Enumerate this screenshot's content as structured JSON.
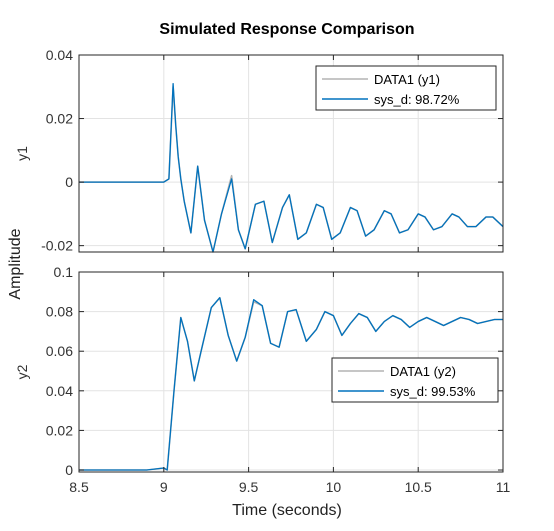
{
  "chart_data": {
    "type": "line",
    "title": "Simulated Response Comparison",
    "xlabel": "Time (seconds)",
    "ylabel": "Amplitude",
    "x_ticks": [
      "8.5",
      "9",
      "9.5",
      "10",
      "10.5",
      "11"
    ],
    "grid": true,
    "colors": {
      "data": "#b3b3b3",
      "model": "#0072bd"
    },
    "subplots": [
      {
        "ylabel": "y1",
        "xlim": [
          8.5,
          11
        ],
        "ylim": [
          -0.022,
          0.04
        ],
        "y_ticks": [
          "-0.02",
          "0",
          "0.02",
          "0.04"
        ],
        "legend_position": "top-right",
        "series": [
          {
            "name": "DATA1 (y1)",
            "role": "data",
            "x": [
              8.5,
              9.0,
              9.03,
              9.055,
              9.07,
              9.085,
              9.1,
              9.12,
              9.16,
              9.2,
              9.24,
              9.29,
              9.34,
              9.4,
              9.44,
              9.48,
              9.54,
              9.59,
              9.64,
              9.7,
              9.74,
              9.79,
              9.84,
              9.9,
              9.94,
              9.99,
              10.04,
              10.1,
              10.14,
              10.19,
              10.24,
              10.3,
              10.34,
              10.39,
              10.44,
              10.5,
              10.54,
              10.59,
              10.64,
              10.7,
              10.74,
              10.79,
              10.84,
              10.9,
              10.94,
              11.0
            ],
            "y": [
              0.0,
              0.0,
              0.001,
              0.03,
              0.018,
              0.008,
              0.001,
              -0.006,
              -0.016,
              0.005,
              -0.012,
              -0.022,
              -0.01,
              0.002,
              -0.015,
              -0.021,
              -0.007,
              -0.006,
              -0.019,
              -0.008,
              -0.004,
              -0.018,
              -0.016,
              -0.007,
              -0.008,
              -0.018,
              -0.016,
              -0.008,
              -0.009,
              -0.017,
              -0.015,
              -0.009,
              -0.01,
              -0.016,
              -0.015,
              -0.01,
              -0.011,
              -0.015,
              -0.014,
              -0.01,
              -0.011,
              -0.014,
              -0.014,
              -0.011,
              -0.011,
              -0.014
            ]
          },
          {
            "name": "sys_d: 98.72%",
            "role": "model",
            "x": [
              8.5,
              9.0,
              9.03,
              9.055,
              9.07,
              9.085,
              9.1,
              9.12,
              9.16,
              9.2,
              9.24,
              9.29,
              9.34,
              9.4,
              9.44,
              9.48,
              9.54,
              9.59,
              9.64,
              9.7,
              9.74,
              9.79,
              9.84,
              9.9,
              9.94,
              9.99,
              10.04,
              10.1,
              10.14,
              10.19,
              10.24,
              10.3,
              10.34,
              10.39,
              10.44,
              10.5,
              10.54,
              10.59,
              10.64,
              10.7,
              10.74,
              10.79,
              10.84,
              10.9,
              10.94,
              11.0
            ],
            "y": [
              0.0,
              0.0,
              0.001,
              0.031,
              0.018,
              0.008,
              0.001,
              -0.006,
              -0.016,
              0.005,
              -0.012,
              -0.022,
              -0.01,
              0.001,
              -0.015,
              -0.021,
              -0.007,
              -0.006,
              -0.019,
              -0.008,
              -0.004,
              -0.018,
              -0.016,
              -0.007,
              -0.008,
              -0.018,
              -0.016,
              -0.008,
              -0.009,
              -0.017,
              -0.015,
              -0.009,
              -0.01,
              -0.016,
              -0.015,
              -0.01,
              -0.011,
              -0.015,
              -0.014,
              -0.01,
              -0.011,
              -0.014,
              -0.014,
              -0.011,
              -0.011,
              -0.014
            ]
          }
        ]
      },
      {
        "ylabel": "y2",
        "xlim": [
          8.5,
          11
        ],
        "ylim": [
          -0.001,
          0.1
        ],
        "y_ticks": [
          "0",
          "0.02",
          "0.04",
          "0.06",
          "0.08",
          "0.1"
        ],
        "legend_position": "middle-right",
        "series": [
          {
            "name": "DATA1 (y2)",
            "role": "data",
            "x": [
              8.5,
              8.9,
              9.0,
              9.02,
              9.06,
              9.1,
              9.14,
              9.18,
              9.22,
              9.28,
              9.33,
              9.38,
              9.43,
              9.48,
              9.53,
              9.58,
              9.63,
              9.68,
              9.73,
              9.78,
              9.84,
              9.9,
              9.95,
              10.0,
              10.05,
              10.1,
              10.15,
              10.2,
              10.25,
              10.3,
              10.35,
              10.4,
              10.45,
              10.5,
              10.55,
              10.6,
              10.65,
              10.7,
              10.75,
              10.8,
              10.85,
              10.9,
              10.95,
              11.0
            ],
            "y": [
              0.0,
              0.0,
              0.001,
              0.0,
              0.04,
              0.077,
              0.065,
              0.045,
              0.06,
              0.082,
              0.087,
              0.068,
              0.055,
              0.067,
              0.085,
              0.083,
              0.064,
              0.062,
              0.08,
              0.081,
              0.065,
              0.071,
              0.08,
              0.078,
              0.068,
              0.074,
              0.079,
              0.077,
              0.07,
              0.075,
              0.078,
              0.076,
              0.072,
              0.075,
              0.077,
              0.075,
              0.073,
              0.075,
              0.077,
              0.076,
              0.074,
              0.075,
              0.076,
              0.076
            ]
          },
          {
            "name": "sys_d: 99.53%",
            "role": "model",
            "x": [
              8.5,
              8.9,
              9.0,
              9.02,
              9.06,
              9.1,
              9.14,
              9.18,
              9.22,
              9.28,
              9.33,
              9.38,
              9.43,
              9.48,
              9.53,
              9.58,
              9.63,
              9.68,
              9.73,
              9.78,
              9.84,
              9.9,
              9.95,
              10.0,
              10.05,
              10.1,
              10.15,
              10.2,
              10.25,
              10.3,
              10.35,
              10.4,
              10.45,
              10.5,
              10.55,
              10.6,
              10.65,
              10.7,
              10.75,
              10.8,
              10.85,
              10.9,
              10.95,
              11.0
            ],
            "y": [
              0.0,
              0.0,
              0.001,
              0.0,
              0.04,
              0.077,
              0.065,
              0.045,
              0.06,
              0.082,
              0.087,
              0.068,
              0.055,
              0.067,
              0.086,
              0.083,
              0.064,
              0.062,
              0.08,
              0.081,
              0.065,
              0.071,
              0.08,
              0.078,
              0.068,
              0.074,
              0.079,
              0.077,
              0.07,
              0.075,
              0.078,
              0.076,
              0.072,
              0.075,
              0.077,
              0.075,
              0.073,
              0.075,
              0.077,
              0.076,
              0.074,
              0.075,
              0.076,
              0.076
            ]
          }
        ]
      }
    ]
  }
}
